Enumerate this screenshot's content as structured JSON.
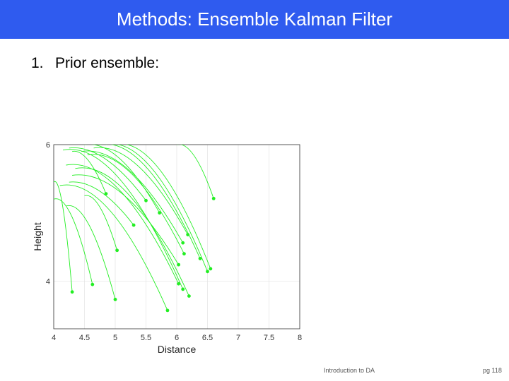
{
  "header": {
    "title": "Methods: Ensemble Kalman Filter"
  },
  "list": {
    "items": [
      {
        "number": "1.",
        "text": "Prior ensemble:"
      }
    ]
  },
  "footer": {
    "left": "Introduction to DA",
    "right": "pg 118"
  },
  "chart_data": {
    "type": "line",
    "xlabel": "Distance",
    "ylabel": "Height",
    "xlim": [
      4,
      8
    ],
    "ylim": [
      3.3,
      6
    ],
    "xticks": [
      {
        "value": 4,
        "label": "4"
      },
      {
        "value": 4.5,
        "label": "4.5"
      },
      {
        "value": 5,
        "label": "5"
      },
      {
        "value": 5.5,
        "label": "5.5"
      },
      {
        "value": 6,
        "label": "6"
      },
      {
        "value": 6.5,
        "label": "6.5"
      },
      {
        "value": 7,
        "label": "7"
      },
      {
        "value": 7.5,
        "label": "7.5"
      },
      {
        "value": 8,
        "label": "8"
      }
    ],
    "yticks": [
      {
        "value": 4,
        "label": "4"
      },
      {
        "value": 6,
        "label": "6"
      }
    ],
    "grid": true,
    "color": "#22ee22",
    "series": [
      {
        "start": [
          4.0,
          5.45
        ],
        "end": [
          4.3,
          3.84
        ]
      },
      {
        "start": [
          4.0,
          5.2
        ],
        "end": [
          4.63,
          3.95
        ]
      },
      {
        "start": [
          4.2,
          5.1
        ],
        "end": [
          5.0,
          3.73
        ]
      },
      {
        "start": [
          4.5,
          5.25
        ],
        "end": [
          5.03,
          4.45
        ]
      },
      {
        "start": [
          4.25,
          5.45
        ],
        "end": [
          5.3,
          4.82
        ]
      },
      {
        "start": [
          4.3,
          5.9
        ],
        "end": [
          4.85,
          5.28
        ]
      },
      {
        "start": [
          4.25,
          5.95
        ],
        "end": [
          5.5,
          5.18
        ]
      },
      {
        "start": [
          4.5,
          6.0
        ],
        "end": [
          5.72,
          5.0
        ]
      },
      {
        "start": [
          4.1,
          5.4
        ],
        "end": [
          5.85,
          3.57
        ]
      },
      {
        "start": [
          4.2,
          5.7
        ],
        "end": [
          6.03,
          3.96
        ]
      },
      {
        "start": [
          4.3,
          5.55
        ],
        "end": [
          6.03,
          4.24
        ]
      },
      {
        "start": [
          4.15,
          5.92
        ],
        "end": [
          6.1,
          3.88
        ]
      },
      {
        "start": [
          4.35,
          5.65
        ],
        "end": [
          6.2,
          3.78
        ]
      },
      {
        "start": [
          4.45,
          5.9
        ],
        "end": [
          6.1,
          4.56
        ]
      },
      {
        "start": [
          4.55,
          5.85
        ],
        "end": [
          6.12,
          4.4
        ]
      },
      {
        "start": [
          4.65,
          5.95
        ],
        "end": [
          6.18,
          4.68
        ]
      },
      {
        "start": [
          4.75,
          6.0
        ],
        "end": [
          6.38,
          4.33
        ]
      },
      {
        "start": [
          4.85,
          6.0
        ],
        "end": [
          6.5,
          4.14
        ]
      },
      {
        "start": [
          5.0,
          6.0
        ],
        "end": [
          6.55,
          4.18
        ]
      },
      {
        "start": [
          6.0,
          6.0
        ],
        "end": [
          6.6,
          5.21
        ]
      }
    ]
  }
}
